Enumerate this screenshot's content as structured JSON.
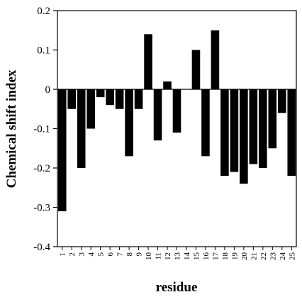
{
  "chart_data": {
    "type": "bar",
    "title": "",
    "xlabel": "residue",
    "ylabel": "Chemical shift index",
    "categories": [
      "1",
      "2",
      "3",
      "4",
      "5",
      "6",
      "7",
      "8",
      "9",
      "10",
      "11",
      "12",
      "13",
      "14",
      "15",
      "16",
      "17",
      "18",
      "19",
      "20",
      "21",
      "22",
      "23",
      "24",
      "25"
    ],
    "values": [
      -0.31,
      -0.05,
      -0.2,
      -0.1,
      -0.02,
      -0.04,
      -0.05,
      -0.17,
      -0.05,
      0.14,
      -0.13,
      0.02,
      -0.11,
      0.0,
      0.1,
      -0.17,
      0.15,
      -0.22,
      -0.21,
      -0.24,
      -0.19,
      -0.2,
      -0.15,
      -0.06,
      -0.22
    ],
    "ylim": [
      -0.4,
      0.2
    ],
    "yticks": [
      0.2,
      0.1,
      0,
      -0.1,
      -0.2,
      -0.3,
      -0.4
    ],
    "ytick_labels": [
      "0.2",
      "0.1",
      "0",
      "-0.1",
      "-0.2",
      "-0.3",
      "-0.4"
    ],
    "grid": false,
    "bar_color": "#000000"
  }
}
